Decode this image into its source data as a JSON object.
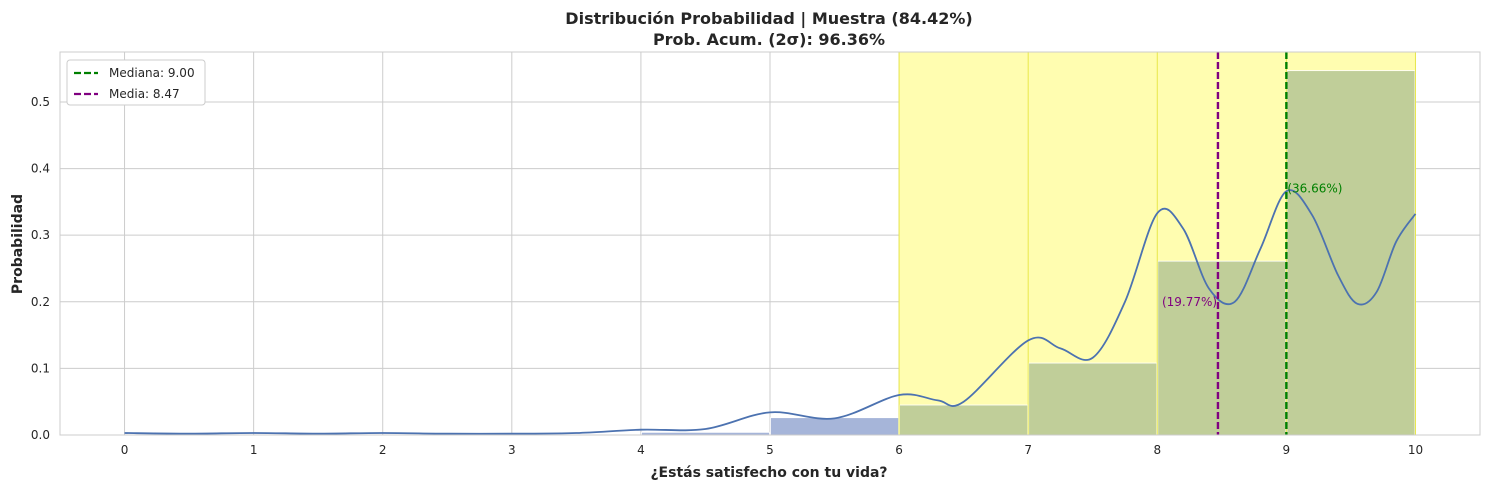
{
  "chart_data": {
    "type": "bar",
    "title": "Distribución Probabilidad | Muestra (84.42%)",
    "subtitle": "Prob. Acum. (2σ): 96.36%",
    "xlabel": "¿Estás satisfecho con tu vida?",
    "ylabel": "Probabilidad",
    "xlim": [
      -0.5,
      10.5
    ],
    "ylim": [
      0,
      0.575
    ],
    "x_ticks": [
      "0",
      "1",
      "2",
      "3",
      "4",
      "5",
      "6",
      "7",
      "8",
      "9",
      "10"
    ],
    "y_ticks": [
      "0.0",
      "0.1",
      "0.2",
      "0.3",
      "0.4",
      "0.5"
    ],
    "grid": true,
    "legend_position": "top-left",
    "bins": [
      {
        "from": 4,
        "to": 5,
        "value": 0.004
      },
      {
        "from": 5,
        "to": 6,
        "value": 0.026
      },
      {
        "from": 6,
        "to": 7,
        "value": 0.045
      },
      {
        "from": 7,
        "to": 8,
        "value": 0.108
      },
      {
        "from": 8,
        "to": 9,
        "value": 0.261
      },
      {
        "from": 9,
        "to": 10,
        "value": 0.547
      }
    ],
    "highlight_range": [
      6,
      10
    ],
    "kde": {
      "x": [
        0,
        0.5,
        1,
        1.5,
        2,
        2.5,
        3,
        3.5,
        4,
        4.5,
        5,
        5.5,
        6,
        6.3,
        6.5,
        7,
        7.25,
        7.5,
        7.75,
        8,
        8.2,
        8.4,
        8.6,
        8.8,
        9,
        9.2,
        9.4,
        9.55,
        9.7,
        9.85,
        10
      ],
      "y": [
        0.003,
        0.002,
        0.003,
        0.002,
        0.003,
        0.002,
        0.002,
        0.003,
        0.008,
        0.009,
        0.034,
        0.025,
        0.06,
        0.052,
        0.05,
        0.142,
        0.13,
        0.116,
        0.2,
        0.333,
        0.31,
        0.22,
        0.2,
        0.28,
        0.366,
        0.33,
        0.24,
        0.197,
        0.215,
        0.29,
        0.332
      ]
    },
    "median": {
      "label": "Mediana: 9.00",
      "value": 9.0,
      "annotation": "(36.66%)",
      "annotation_y": 0.37
    },
    "mean": {
      "label": "Media: 8.47",
      "value": 8.47,
      "annotation": "(19.77%)",
      "annotation_y": 0.2
    },
    "colors": {
      "bar": "#a6b5d9",
      "bar_in_highlight": "#c0ce99",
      "highlight": "#fffdb0",
      "highlight_edge": "#e8e84a",
      "kde": "#4c72b0",
      "median": "#008000",
      "mean": "#800080",
      "grid": "#cccccc",
      "axis": "#cccccc"
    }
  }
}
